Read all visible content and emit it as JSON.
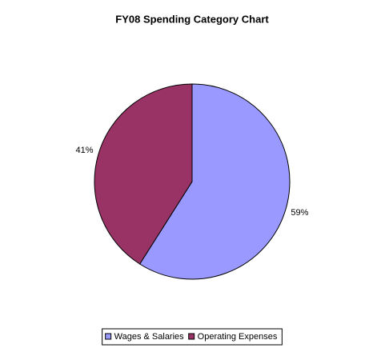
{
  "chart_data": {
    "type": "pie",
    "title": "FY08 Spending Category Chart",
    "categories": [
      "Wages & Salaries",
      "Operating Expenses"
    ],
    "values": [
      59,
      41
    ],
    "value_labels": [
      "59%",
      "41%"
    ],
    "colors": [
      "#9999ff",
      "#993366"
    ],
    "legend": "bottom"
  }
}
